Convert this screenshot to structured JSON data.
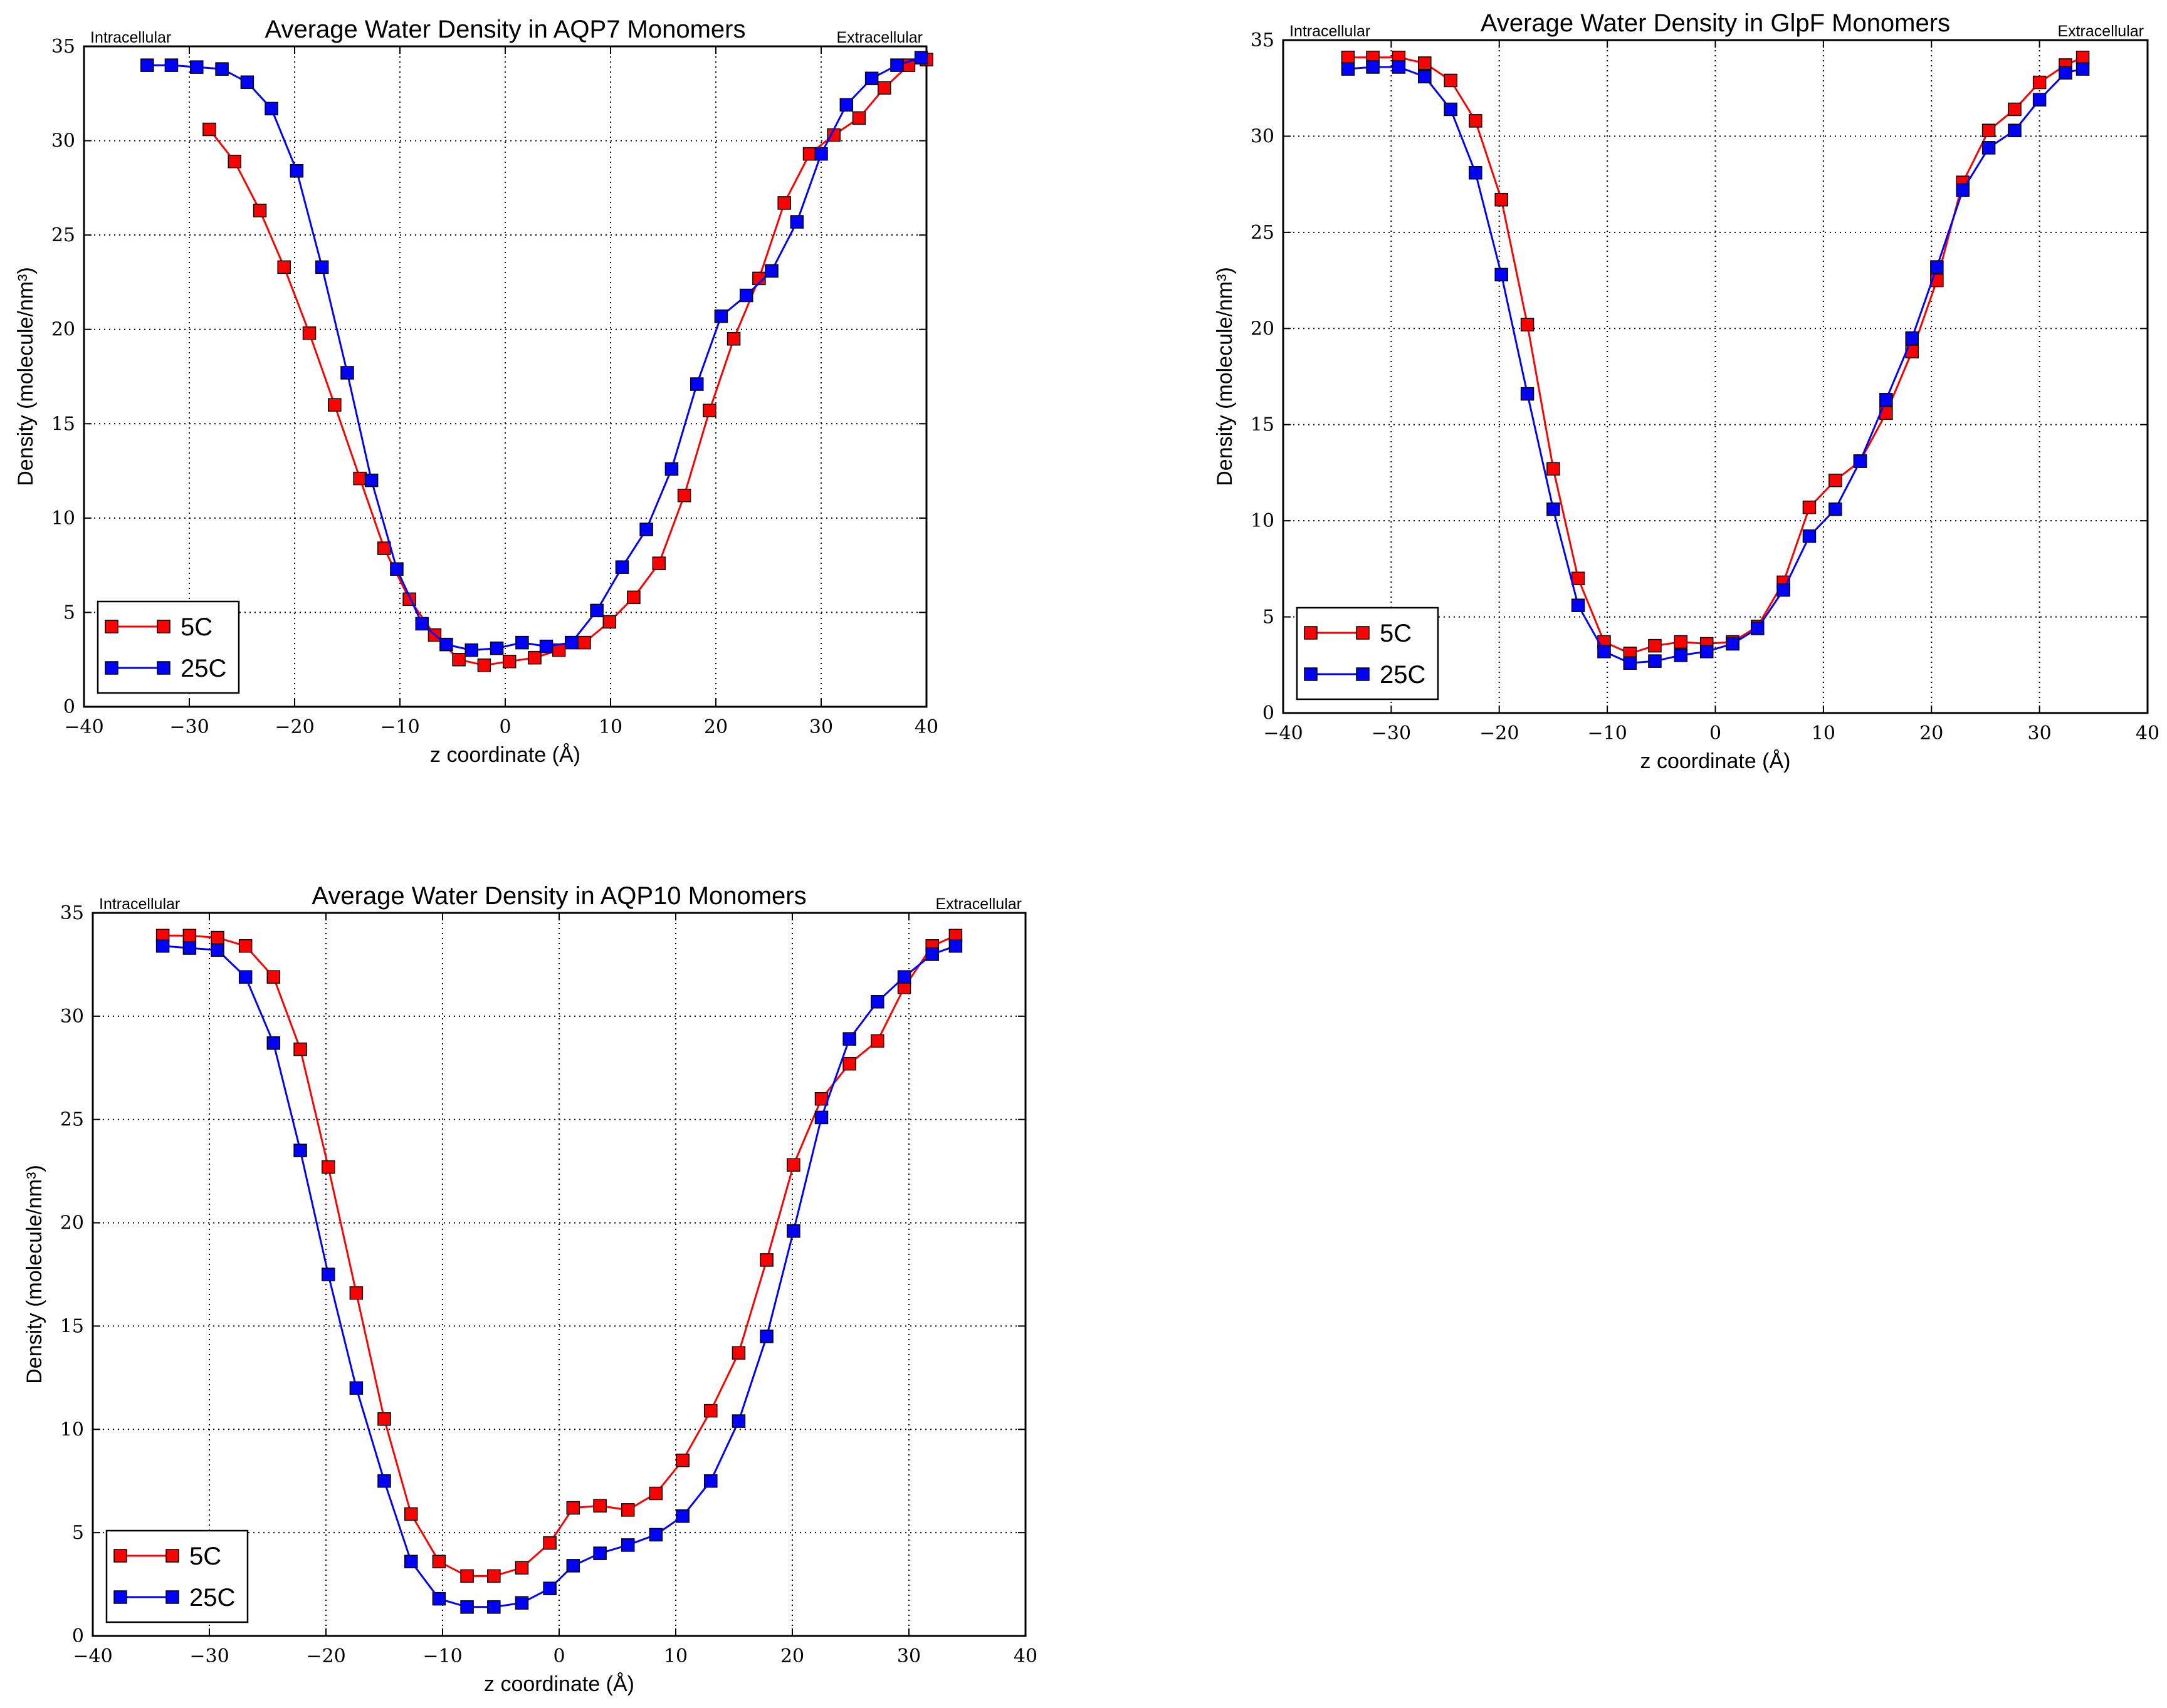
{
  "colors": {
    "5C": "#ff0000",
    "25C": "#0000ff",
    "grid": "#000000",
    "frame": "#000000"
  },
  "chart_data": [
    {
      "type": "line",
      "title": "Average Water Density in AQP7 Monomers",
      "left_label": "Intracellular",
      "right_label": "Extracellular",
      "xlabel": "z coordinate (Å)",
      "ylabel": "Density (molecule/nm³)",
      "xlim": [
        -40,
        40
      ],
      "ylim": [
        0,
        35
      ],
      "xticks": [
        -40,
        -30,
        -20,
        -10,
        0,
        10,
        20,
        30,
        40
      ],
      "yticks": [
        0,
        5,
        10,
        15,
        20,
        25,
        30,
        35
      ],
      "grid": true,
      "legend": "lower-left",
      "series": [
        {
          "name": "5C",
          "x": [
            -28.1,
            -25.7,
            -23.3,
            -21.0,
            -18.6,
            -16.2,
            -13.8,
            -11.5,
            -9.1,
            -6.7,
            -4.4,
            -2.0,
            0.4,
            2.8,
            5.1,
            7.5,
            9.9,
            12.2,
            14.6,
            17.0,
            19.4,
            21.7,
            24.1,
            26.5,
            28.9,
            31.2,
            33.6,
            36.0,
            38.3,
            40.0
          ],
          "y": [
            30.6,
            28.9,
            26.3,
            23.3,
            19.8,
            16.0,
            12.1,
            8.4,
            5.7,
            3.8,
            2.5,
            2.2,
            2.4,
            2.6,
            3.0,
            3.4,
            4.5,
            5.8,
            7.6,
            11.2,
            15.7,
            19.5,
            22.7,
            26.7,
            29.3,
            30.3,
            31.2,
            32.8,
            34.0,
            34.3
          ]
        },
        {
          "name": "25C",
          "x": [
            -34.0,
            -31.7,
            -29.3,
            -26.9,
            -24.5,
            -22.2,
            -19.8,
            -17.4,
            -15.0,
            -12.7,
            -10.3,
            -7.9,
            -5.6,
            -3.2,
            -0.8,
            1.6,
            3.9,
            6.3,
            8.7,
            11.1,
            13.4,
            15.8,
            18.2,
            20.5,
            22.9,
            25.3,
            27.7,
            30.0,
            32.4,
            34.8,
            37.2,
            39.5
          ],
          "y": [
            34.0,
            34.0,
            33.9,
            33.8,
            33.1,
            31.7,
            28.4,
            23.3,
            17.7,
            12.0,
            7.3,
            4.4,
            3.3,
            3.0,
            3.1,
            3.4,
            3.2,
            3.4,
            5.1,
            7.4,
            9.4,
            12.6,
            17.1,
            20.7,
            21.8,
            23.1,
            25.7,
            29.3,
            31.9,
            33.3,
            34.0,
            34.4
          ]
        }
      ]
    },
    {
      "type": "line",
      "title": "Average Water Density in GlpF Monomers",
      "left_label": "Intracellular",
      "right_label": "Extracellular",
      "xlabel": "z coordinate (Å)",
      "ylabel": "Density (molecule/nm³)",
      "xlim": [
        -40,
        40
      ],
      "ylim": [
        0,
        35
      ],
      "xticks": [
        -40,
        -30,
        -20,
        -10,
        0,
        10,
        20,
        30,
        40
      ],
      "yticks": [
        0,
        5,
        10,
        15,
        20,
        25,
        30,
        35
      ],
      "grid": true,
      "legend": "lower-left",
      "series": [
        {
          "name": "5C",
          "x": [
            -34.0,
            -31.7,
            -29.3,
            -26.9,
            -24.5,
            -22.2,
            -19.8,
            -17.4,
            -15.0,
            -12.7,
            -10.3,
            -7.9,
            -5.6,
            -3.2,
            -0.8,
            1.6,
            3.9,
            6.3,
            8.7,
            11.1,
            13.4,
            15.8,
            18.2,
            20.5,
            22.9,
            25.3,
            27.7,
            30.0,
            32.4,
            34.0
          ],
          "y": [
            34.1,
            34.1,
            34.1,
            33.8,
            32.9,
            30.8,
            26.7,
            20.2,
            12.7,
            7.0,
            3.7,
            3.1,
            3.5,
            3.7,
            3.6,
            3.7,
            4.5,
            6.8,
            10.7,
            12.1,
            13.1,
            15.6,
            18.8,
            22.5,
            27.6,
            30.3,
            31.4,
            32.8,
            33.7,
            34.1
          ]
        },
        {
          "name": "25C",
          "x": [
            -34.0,
            -31.7,
            -29.3,
            -26.9,
            -24.5,
            -22.2,
            -19.8,
            -17.4,
            -15.0,
            -12.7,
            -10.3,
            -7.9,
            -5.6,
            -3.2,
            -0.8,
            1.6,
            3.9,
            6.3,
            8.7,
            11.1,
            13.4,
            15.8,
            18.2,
            20.5,
            22.9,
            25.3,
            27.7,
            30.0,
            32.4,
            34.0
          ],
          "y": [
            33.5,
            33.6,
            33.6,
            33.1,
            31.4,
            28.1,
            22.8,
            16.6,
            10.6,
            5.6,
            3.2,
            2.6,
            2.7,
            3.0,
            3.2,
            3.6,
            4.4,
            6.4,
            9.2,
            10.6,
            13.1,
            16.3,
            19.5,
            23.2,
            27.2,
            29.4,
            30.3,
            31.9,
            33.3,
            33.5
          ]
        }
      ]
    },
    {
      "type": "line",
      "title": "Average Water Density in AQP10 Monomers",
      "left_label": "Intracellular",
      "right_label": "Extracellular",
      "xlabel": "z coordinate (Å)",
      "ylabel": "Density (molecule/nm³)",
      "xlim": [
        -40,
        40
      ],
      "ylim": [
        0,
        35
      ],
      "xticks": [
        -40,
        -30,
        -20,
        -10,
        0,
        10,
        20,
        30,
        40
      ],
      "yticks": [
        0,
        5,
        10,
        15,
        20,
        25,
        30,
        35
      ],
      "grid": true,
      "legend": "lower-left",
      "series": [
        {
          "name": "5C",
          "x": [
            -34.0,
            -31.7,
            -29.3,
            -26.9,
            -24.5,
            -22.2,
            -19.8,
            -17.4,
            -15.0,
            -12.7,
            -10.3,
            -7.9,
            -5.6,
            -3.2,
            -0.8,
            1.2,
            3.5,
            5.9,
            8.3,
            10.6,
            13.0,
            15.4,
            17.8,
            20.1,
            22.5,
            24.9,
            27.3,
            29.6,
            32.0,
            34.0
          ],
          "y": [
            33.9,
            33.9,
            33.8,
            33.4,
            31.9,
            28.4,
            22.7,
            16.6,
            10.5,
            5.9,
            3.6,
            2.9,
            2.9,
            3.3,
            4.5,
            6.2,
            6.3,
            6.1,
            6.9,
            8.5,
            10.9,
            13.7,
            18.2,
            22.8,
            26.0,
            27.7,
            28.8,
            31.4,
            33.4,
            33.9
          ]
        },
        {
          "name": "25C",
          "x": [
            -34.0,
            -31.7,
            -29.3,
            -26.9,
            -24.5,
            -22.2,
            -19.8,
            -17.4,
            -15.0,
            -12.7,
            -10.3,
            -7.9,
            -5.6,
            -3.2,
            -0.8,
            1.2,
            3.5,
            5.9,
            8.3,
            10.6,
            13.0,
            15.4,
            17.8,
            20.1,
            22.5,
            24.9,
            27.3,
            29.6,
            32.0,
            34.0
          ],
          "y": [
            33.4,
            33.3,
            33.2,
            31.9,
            28.7,
            23.5,
            17.5,
            12.0,
            7.5,
            3.6,
            1.8,
            1.4,
            1.4,
            1.6,
            2.3,
            3.4,
            4.0,
            4.4,
            4.9,
            5.8,
            7.5,
            10.4,
            14.5,
            19.6,
            25.1,
            28.9,
            30.7,
            31.9,
            33.0,
            33.4
          ]
        }
      ]
    }
  ]
}
